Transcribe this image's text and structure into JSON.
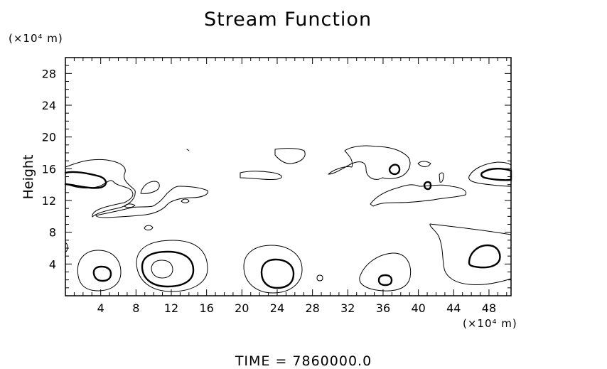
{
  "chart_data": {
    "type": "contour",
    "title": "Stream Function",
    "ylabel": "Height",
    "yunit": "(×10⁴ m)",
    "xunit": "(×10⁴ m)",
    "xlim": [
      0,
      50.5
    ],
    "ylim": [
      0,
      30
    ],
    "xticks": [
      4,
      8,
      12,
      16,
      20,
      24,
      28,
      32,
      36,
      40,
      44,
      48
    ],
    "yticks": [
      4,
      8,
      12,
      16,
      20,
      24,
      28
    ],
    "footer": "TIME  =  7860000.0",
    "contour_levels_drawn": [
      "thin",
      "thick"
    ],
    "features": [
      {
        "kind": "closed",
        "center": [
          4.2,
          2.8
        ],
        "levels": 2
      },
      {
        "kind": "closed",
        "center": [
          11.3,
          3.5
        ],
        "levels": 3
      },
      {
        "kind": "closed",
        "center": [
          24.5,
          2.8
        ],
        "levels": 2
      },
      {
        "kind": "closed",
        "center": [
          36.5,
          2.0
        ],
        "levels": 2
      },
      {
        "kind": "closed",
        "center": [
          47.0,
          5.0
        ],
        "levels": 2
      },
      {
        "kind": "band",
        "y_range": [
          10,
          17
        ],
        "x_range": [
          0,
          16
        ]
      },
      {
        "kind": "band",
        "y_range": [
          11,
          18.5
        ],
        "x_range": [
          20,
          50.5
        ]
      }
    ],
    "grid": false
  }
}
